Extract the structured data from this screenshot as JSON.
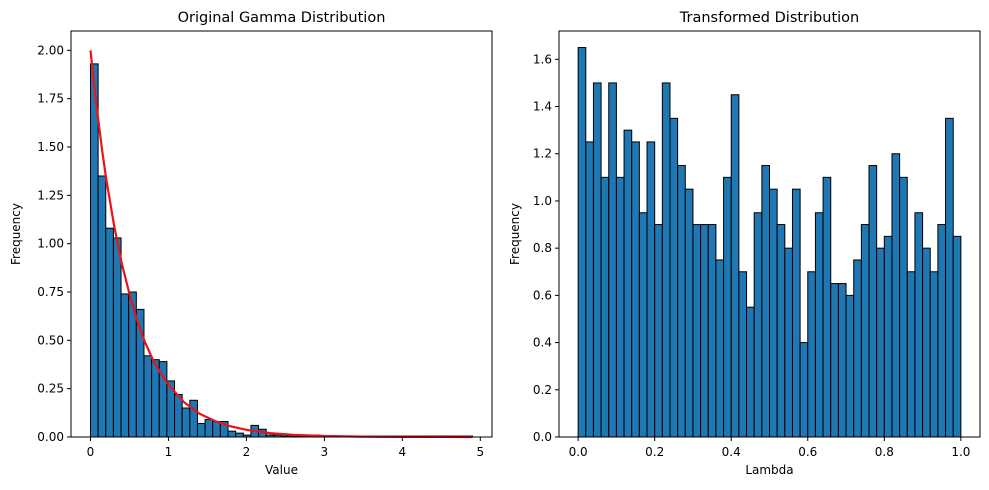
{
  "chart_data": [
    {
      "type": "histogram",
      "title": "Original Gamma Distribution",
      "xlabel": "Value",
      "ylabel": "Frequency",
      "xlim": [
        -0.25,
        5.15
      ],
      "ylim": [
        0,
        2.1
      ],
      "xticks": [
        0,
        1,
        2,
        3,
        4,
        5
      ],
      "xtick_labels": [
        "0",
        "1",
        "2",
        "3",
        "4",
        "5"
      ],
      "yticks": [
        0,
        0.25,
        0.5,
        0.75,
        1.0,
        1.25,
        1.5,
        1.75,
        2.0
      ],
      "ytick_labels": [
        "0.00",
        "0.25",
        "0.50",
        "0.75",
        "1.00",
        "1.25",
        "1.50",
        "1.75",
        "2.00"
      ],
      "bar_color": "#1f77b4",
      "bins": {
        "start": 0.0,
        "width": 0.098,
        "values": [
          1.93,
          1.35,
          1.08,
          1.03,
          0.74,
          0.75,
          0.66,
          0.42,
          0.4,
          0.39,
          0.29,
          0.22,
          0.15,
          0.19,
          0.07,
          0.09,
          0.08,
          0.08,
          0.03,
          0.02,
          0.01,
          0.06,
          0.04,
          0.01,
          0.01,
          0.005,
          0.005,
          0.005,
          0.005,
          0.01,
          0.005,
          0.005,
          0.005,
          0.005,
          0.005,
          0.005,
          0.005,
          0.005,
          0.005,
          0.005,
          0.005,
          0.005,
          0.005,
          0.005,
          0.005,
          0.005,
          0.005,
          0.005,
          0.005,
          0.005
        ]
      },
      "curve": {
        "name": "",
        "color": "#e8141b",
        "x": [
          0.0,
          0.05,
          0.1,
          0.15,
          0.2,
          0.3,
          0.4,
          0.5,
          0.6,
          0.7,
          0.8,
          0.9,
          1.0,
          1.2,
          1.4,
          1.6,
          1.8,
          2.0,
          2.3,
          2.6,
          3.0,
          3.5,
          4.0,
          4.5,
          4.9
        ],
        "y": [
          2.0,
          1.81,
          1.64,
          1.48,
          1.34,
          1.1,
          0.9,
          0.74,
          0.6,
          0.49,
          0.4,
          0.33,
          0.27,
          0.18,
          0.12,
          0.082,
          0.055,
          0.037,
          0.02,
          0.011,
          0.005,
          0.002,
          0.0007,
          0.0002,
          0.0001
        ]
      }
    },
    {
      "type": "histogram",
      "title": "Transformed Distribution",
      "xlabel": "Lambda",
      "ylabel": "Frequency",
      "xlim": [
        -0.05,
        1.05
      ],
      "ylim": [
        0,
        1.72
      ],
      "xticks": [
        0.0,
        0.2,
        0.4,
        0.6,
        0.8,
        1.0
      ],
      "xtick_labels": [
        "0.0",
        "0.2",
        "0.4",
        "0.6",
        "0.8",
        "1.0"
      ],
      "yticks": [
        0.0,
        0.2,
        0.4,
        0.6,
        0.8,
        1.0,
        1.2,
        1.4,
        1.6
      ],
      "ytick_labels": [
        "0.0",
        "0.2",
        "0.4",
        "0.6",
        "0.8",
        "1.0",
        "1.2",
        "1.4",
        "1.6"
      ],
      "bar_color": "#1f77b4",
      "bins": {
        "start": 0.0,
        "width": 0.02,
        "values": [
          1.65,
          1.25,
          1.5,
          1.1,
          1.5,
          1.1,
          1.3,
          1.25,
          0.95,
          1.25,
          0.9,
          1.5,
          1.35,
          1.15,
          1.05,
          0.9,
          0.9,
          0.9,
          0.75,
          1.1,
          1.45,
          0.7,
          0.55,
          0.95,
          1.15,
          1.05,
          0.9,
          0.8,
          1.05,
          0.4,
          0.7,
          0.95,
          1.1,
          0.65,
          0.65,
          0.6,
          0.75,
          0.9,
          1.15,
          0.8,
          0.85,
          1.2,
          1.1,
          0.7,
          0.95,
          0.8,
          0.7,
          0.9,
          1.35,
          0.85
        ]
      }
    }
  ]
}
